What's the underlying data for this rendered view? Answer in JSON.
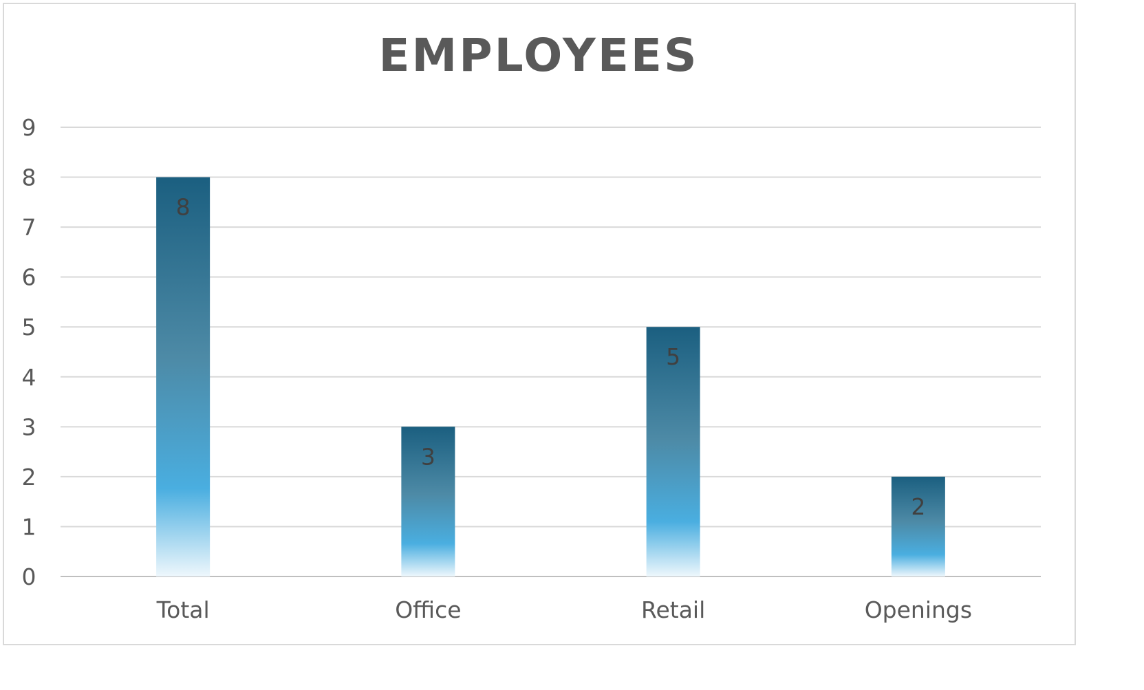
{
  "chart_data": {
    "type": "bar",
    "title": "EMPLOYEES",
    "categories": [
      "Total",
      "Office",
      "Retail",
      "Openings"
    ],
    "values": [
      8,
      3,
      5,
      2
    ],
    "ylim": [
      0,
      9
    ],
    "yticks": [
      "0",
      "1",
      "2",
      "3",
      "4",
      "5",
      "6",
      "7",
      "8",
      "9"
    ],
    "xlabel": "",
    "ylabel": "",
    "grid": true,
    "legend": "none",
    "colors": {
      "bar_top": "#1b5f80",
      "bar_mid": "#4aaee0",
      "bar_bottom": "#eef7fc",
      "gridline": "#d9d9d9",
      "text": "#595959"
    }
  }
}
